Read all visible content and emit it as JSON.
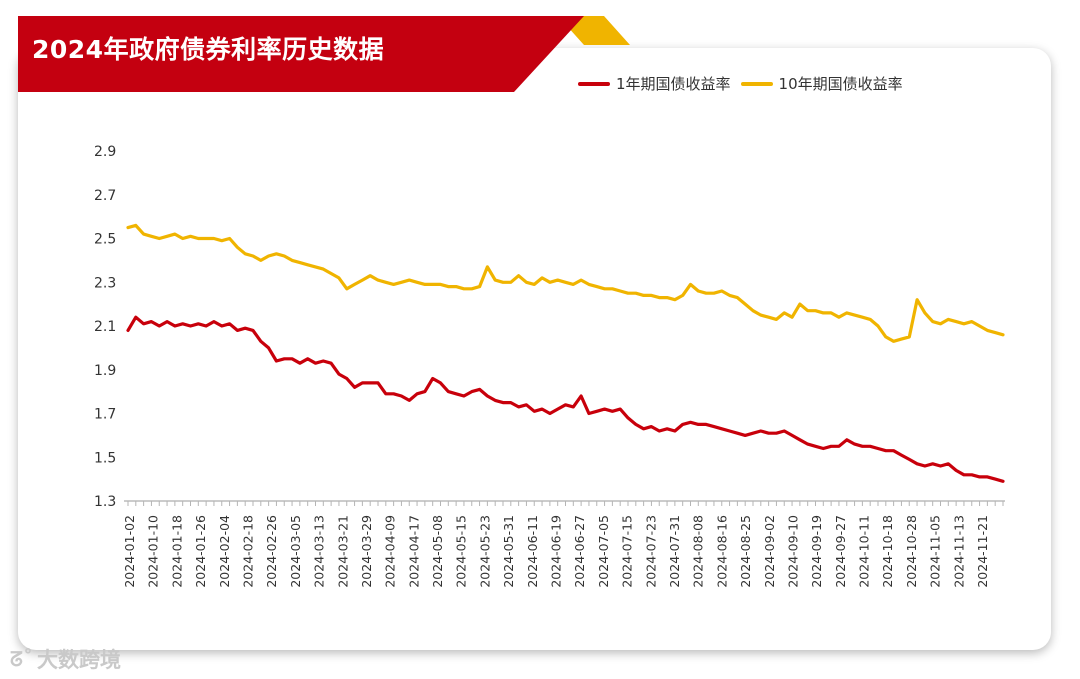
{
  "header": {
    "title": "2024年政府债券利率历史数据"
  },
  "colors": {
    "primary": "#c8000b",
    "secondary": "#f0b400",
    "banner": "#c40010",
    "banner_accent": "#f0b400"
  },
  "watermark": {
    "text": "大数跨境",
    "icon": "brand-logo-icon"
  },
  "chart_data": {
    "type": "line",
    "title": "2024年政府债券利率历史数据",
    "xlabel": "",
    "ylabel": "",
    "ylim": [
      1.3,
      2.9
    ],
    "y_ticks": [
      "1.3",
      "1.5",
      "1.7",
      "1.9",
      "2.1",
      "2.3",
      "2.5",
      "2.7",
      "2.9"
    ],
    "x_tick_labels": [
      "2024-01-02",
      "2024-01-10",
      "2024-01-18",
      "2024-01-26",
      "2024-02-04",
      "2024-02-18",
      "2024-02-26",
      "2024-03-05",
      "2024-03-13",
      "2024-03-21",
      "2024-03-29",
      "2024-04-09",
      "2024-04-17",
      "2024-05-08",
      "2024-05-15",
      "2024-05-23",
      "2024-05-31",
      "2024-06-11",
      "2024-06-19",
      "2024-06-27",
      "2024-07-05",
      "2024-07-15",
      "2024-07-23",
      "2024-07-31",
      "2024-08-08",
      "2024-08-16",
      "2024-08-25",
      "2024-09-02",
      "2024-09-10",
      "2024-09-19",
      "2024-09-27",
      "2024-10-11",
      "2024-10-18",
      "2024-10-28",
      "2024-11-05",
      "2024-11-13",
      "2024-11-21"
    ],
    "x_count": 225,
    "grid": false,
    "legend": "top-right",
    "series": [
      {
        "name": "1年期国债收益率",
        "color": "#c8000b",
        "points": [
          [
            0,
            2.08
          ],
          [
            2,
            2.14
          ],
          [
            4,
            2.11
          ],
          [
            6,
            2.12
          ],
          [
            8,
            2.1
          ],
          [
            10,
            2.12
          ],
          [
            12,
            2.1
          ],
          [
            14,
            2.11
          ],
          [
            16,
            2.1
          ],
          [
            18,
            2.11
          ],
          [
            20,
            2.1
          ],
          [
            22,
            2.12
          ],
          [
            24,
            2.1
          ],
          [
            26,
            2.11
          ],
          [
            28,
            2.08
          ],
          [
            30,
            2.09
          ],
          [
            32,
            2.08
          ],
          [
            34,
            2.03
          ],
          [
            36,
            2.0
          ],
          [
            38,
            1.94
          ],
          [
            40,
            1.95
          ],
          [
            42,
            1.95
          ],
          [
            44,
            1.93
          ],
          [
            46,
            1.95
          ],
          [
            48,
            1.93
          ],
          [
            50,
            1.94
          ],
          [
            52,
            1.93
          ],
          [
            54,
            1.88
          ],
          [
            56,
            1.86
          ],
          [
            58,
            1.82
          ],
          [
            60,
            1.84
          ],
          [
            62,
            1.84
          ],
          [
            64,
            1.84
          ],
          [
            66,
            1.79
          ],
          [
            68,
            1.79
          ],
          [
            70,
            1.78
          ],
          [
            72,
            1.76
          ],
          [
            74,
            1.79
          ],
          [
            76,
            1.8
          ],
          [
            78,
            1.86
          ],
          [
            80,
            1.84
          ],
          [
            82,
            1.8
          ],
          [
            84,
            1.79
          ],
          [
            86,
            1.78
          ],
          [
            88,
            1.8
          ],
          [
            90,
            1.81
          ],
          [
            92,
            1.78
          ],
          [
            94,
            1.76
          ],
          [
            96,
            1.75
          ],
          [
            98,
            1.75
          ],
          [
            100,
            1.73
          ],
          [
            102,
            1.74
          ],
          [
            104,
            1.71
          ],
          [
            106,
            1.72
          ],
          [
            108,
            1.7
          ],
          [
            110,
            1.72
          ],
          [
            112,
            1.74
          ],
          [
            114,
            1.73
          ],
          [
            116,
            1.78
          ],
          [
            118,
            1.7
          ],
          [
            120,
            1.71
          ],
          [
            122,
            1.72
          ],
          [
            124,
            1.71
          ],
          [
            126,
            1.72
          ],
          [
            128,
            1.68
          ],
          [
            130,
            1.65
          ],
          [
            132,
            1.63
          ],
          [
            134,
            1.64
          ],
          [
            136,
            1.62
          ],
          [
            138,
            1.63
          ],
          [
            140,
            1.62
          ],
          [
            142,
            1.65
          ],
          [
            144,
            1.66
          ],
          [
            146,
            1.65
          ],
          [
            148,
            1.65
          ],
          [
            150,
            1.64
          ],
          [
            152,
            1.63
          ],
          [
            154,
            1.62
          ],
          [
            156,
            1.61
          ],
          [
            158,
            1.6
          ],
          [
            160,
            1.61
          ],
          [
            162,
            1.62
          ],
          [
            164,
            1.61
          ],
          [
            166,
            1.61
          ],
          [
            168,
            1.62
          ],
          [
            170,
            1.6
          ],
          [
            172,
            1.58
          ],
          [
            174,
            1.56
          ],
          [
            176,
            1.55
          ],
          [
            178,
            1.54
          ],
          [
            180,
            1.55
          ],
          [
            182,
            1.55
          ],
          [
            184,
            1.58
          ],
          [
            186,
            1.56
          ],
          [
            188,
            1.55
          ],
          [
            190,
            1.55
          ],
          [
            192,
            1.54
          ],
          [
            194,
            1.53
          ],
          [
            196,
            1.53
          ],
          [
            198,
            1.51
          ],
          [
            200,
            1.49
          ],
          [
            202,
            1.47
          ],
          [
            204,
            1.46
          ],
          [
            206,
            1.47
          ],
          [
            208,
            1.46
          ],
          [
            210,
            1.47
          ],
          [
            212,
            1.44
          ],
          [
            214,
            1.42
          ],
          [
            216,
            1.42
          ],
          [
            218,
            1.41
          ],
          [
            220,
            1.41
          ],
          [
            222,
            1.4
          ],
          [
            224,
            1.39
          ]
        ]
      },
      {
        "name": "10年期国债收益率",
        "color": "#f0b400",
        "points": [
          [
            0,
            2.55
          ],
          [
            2,
            2.56
          ],
          [
            4,
            2.52
          ],
          [
            6,
            2.51
          ],
          [
            8,
            2.5
          ],
          [
            10,
            2.51
          ],
          [
            12,
            2.52
          ],
          [
            14,
            2.5
          ],
          [
            16,
            2.51
          ],
          [
            18,
            2.5
          ],
          [
            20,
            2.5
          ],
          [
            22,
            2.5
          ],
          [
            24,
            2.49
          ],
          [
            26,
            2.5
          ],
          [
            28,
            2.46
          ],
          [
            30,
            2.43
          ],
          [
            32,
            2.42
          ],
          [
            34,
            2.4
          ],
          [
            36,
            2.42
          ],
          [
            38,
            2.43
          ],
          [
            40,
            2.42
          ],
          [
            42,
            2.4
          ],
          [
            44,
            2.39
          ],
          [
            46,
            2.38
          ],
          [
            48,
            2.37
          ],
          [
            50,
            2.36
          ],
          [
            52,
            2.34
          ],
          [
            54,
            2.32
          ],
          [
            56,
            2.27
          ],
          [
            58,
            2.29
          ],
          [
            60,
            2.31
          ],
          [
            62,
            2.33
          ],
          [
            64,
            2.31
          ],
          [
            66,
            2.3
          ],
          [
            68,
            2.29
          ],
          [
            70,
            2.3
          ],
          [
            72,
            2.31
          ],
          [
            74,
            2.3
          ],
          [
            76,
            2.29
          ],
          [
            78,
            2.29
          ],
          [
            80,
            2.29
          ],
          [
            82,
            2.28
          ],
          [
            84,
            2.28
          ],
          [
            86,
            2.27
          ],
          [
            88,
            2.27
          ],
          [
            90,
            2.28
          ],
          [
            92,
            2.37
          ],
          [
            94,
            2.31
          ],
          [
            96,
            2.3
          ],
          [
            98,
            2.3
          ],
          [
            100,
            2.33
          ],
          [
            102,
            2.3
          ],
          [
            104,
            2.29
          ],
          [
            106,
            2.32
          ],
          [
            108,
            2.3
          ],
          [
            110,
            2.31
          ],
          [
            112,
            2.3
          ],
          [
            114,
            2.29
          ],
          [
            116,
            2.31
          ],
          [
            118,
            2.29
          ],
          [
            120,
            2.28
          ],
          [
            122,
            2.27
          ],
          [
            124,
            2.27
          ],
          [
            126,
            2.26
          ],
          [
            128,
            2.25
          ],
          [
            130,
            2.25
          ],
          [
            132,
            2.24
          ],
          [
            134,
            2.24
          ],
          [
            136,
            2.23
          ],
          [
            138,
            2.23
          ],
          [
            140,
            2.22
          ],
          [
            142,
            2.24
          ],
          [
            144,
            2.29
          ],
          [
            146,
            2.26
          ],
          [
            148,
            2.25
          ],
          [
            150,
            2.25
          ],
          [
            152,
            2.26
          ],
          [
            154,
            2.24
          ],
          [
            156,
            2.23
          ],
          [
            158,
            2.2
          ],
          [
            160,
            2.17
          ],
          [
            162,
            2.15
          ],
          [
            164,
            2.14
          ],
          [
            166,
            2.13
          ],
          [
            168,
            2.16
          ],
          [
            170,
            2.14
          ],
          [
            172,
            2.2
          ],
          [
            174,
            2.17
          ],
          [
            176,
            2.17
          ],
          [
            178,
            2.16
          ],
          [
            180,
            2.16
          ],
          [
            182,
            2.14
          ],
          [
            184,
            2.16
          ],
          [
            186,
            2.15
          ],
          [
            188,
            2.14
          ],
          [
            190,
            2.13
          ],
          [
            192,
            2.1
          ],
          [
            194,
            2.05
          ],
          [
            196,
            2.03
          ],
          [
            198,
            2.04
          ],
          [
            200,
            2.05
          ],
          [
            202,
            2.22
          ],
          [
            204,
            2.16
          ],
          [
            206,
            2.12
          ],
          [
            208,
            2.11
          ],
          [
            210,
            2.13
          ],
          [
            212,
            2.12
          ],
          [
            214,
            2.11
          ],
          [
            216,
            2.12
          ],
          [
            218,
            2.1
          ],
          [
            220,
            2.08
          ],
          [
            222,
            2.07
          ],
          [
            224,
            2.06
          ]
        ]
      }
    ]
  }
}
